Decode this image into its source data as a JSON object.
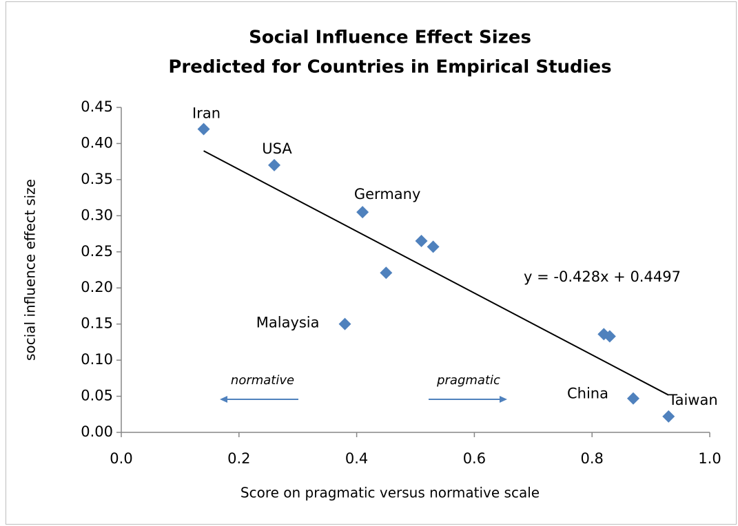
{
  "chart_data": {
    "type": "scatter",
    "title": [
      "Social Influence Effect Sizes",
      "Predicted for Countries in Empirical Studies"
    ],
    "x_label": "Score on pragmatic versus normative scale",
    "y_label": "social influence effect size",
    "x": [
      0.14,
      0.26,
      0.41,
      0.51,
      0.53,
      0.45,
      0.38,
      0.82,
      0.83,
      0.87,
      0.93
    ],
    "values": [
      0.42,
      0.37,
      0.305,
      0.265,
      0.257,
      0.221,
      0.15,
      0.136,
      0.133,
      0.047,
      0.022
    ],
    "labels": [
      "Iran",
      "USA",
      "Germany",
      null,
      null,
      null,
      "Malaysia",
      null,
      null,
      "China",
      "Taiwan"
    ],
    "color": "#4f81bd",
    "trendline": {
      "slope": -0.428,
      "intercept": 0.4497,
      "label": "y = -0.428x + 0.4497"
    },
    "annotations": [
      "normative",
      "pragmatic"
    ],
    "xlim": [
      0,
      1
    ],
    "ylim": [
      0,
      0.45
    ],
    "xticks": [
      {
        "value": 0,
        "label": "0.0"
      },
      {
        "value": 0.2,
        "label": "0.2"
      },
      {
        "value": 0.4,
        "label": "0.4"
      },
      {
        "value": 0.6,
        "label": "0.6"
      },
      {
        "value": 0.8,
        "label": "0.8"
      },
      {
        "value": 1,
        "label": "1.0"
      }
    ],
    "yticks": [
      {
        "value": 0,
        "label": "0.00"
      },
      {
        "value": 0.05,
        "label": "0.05"
      },
      {
        "value": 0.1,
        "label": "0.10"
      },
      {
        "value": 0.15,
        "label": "0.15"
      },
      {
        "value": 0.2,
        "label": "0.20"
      },
      {
        "value": 0.25,
        "label": "0.25"
      },
      {
        "value": 0.3,
        "label": "0.30"
      },
      {
        "value": 0.35,
        "label": "0.35"
      },
      {
        "value": 0.4,
        "label": "0.40"
      },
      {
        "value": 0.45,
        "label": "0.45"
      }
    ],
    "grid": false
  }
}
